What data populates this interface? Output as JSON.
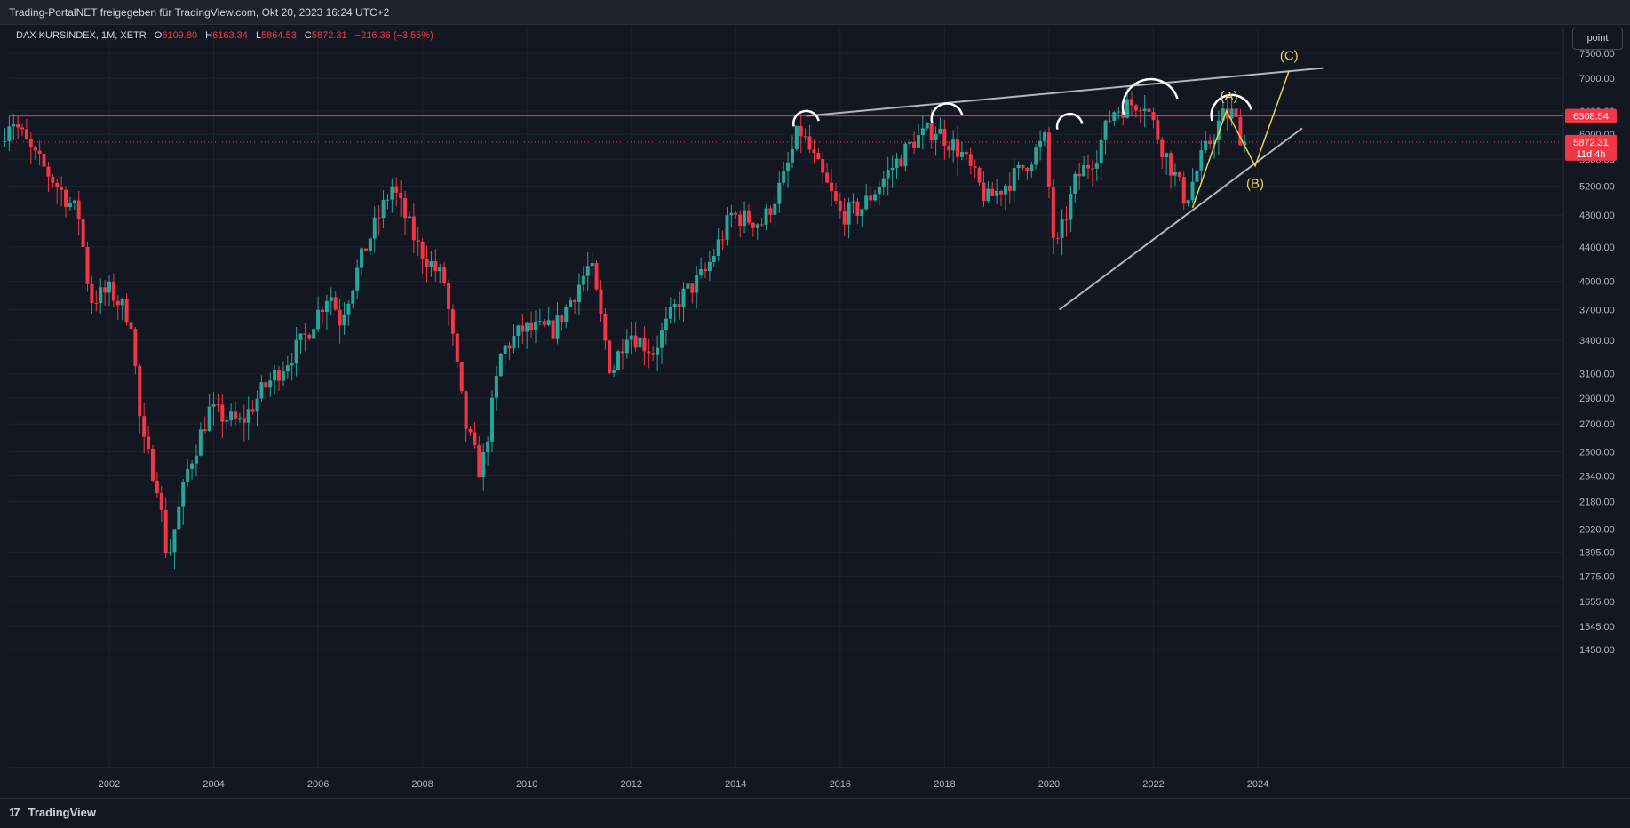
{
  "header": {
    "attribution": "Trading-PortalNET freigegeben für TradingView.com, Okt 20, 2023 16:24 UTC+2"
  },
  "legend": {
    "symbol": "DAX KURSINDEX, 1M, XETR",
    "o_label": "O",
    "o_value": "6109.80",
    "h_label": "H",
    "h_value": "6163.34",
    "l_label": "L",
    "l_value": "5864.53",
    "c_label": "C",
    "c_value": "5872.31",
    "change": "−216.36 (−3.55%)"
  },
  "toolbar": {
    "unit_button": "point"
  },
  "price_badges": {
    "resistance": "6308.54",
    "last": "5872.31",
    "countdown": "11d 4h"
  },
  "annotations": {
    "A": "(A)",
    "B": "(B)",
    "C": "(C)"
  },
  "footer": {
    "logo_mark": "17",
    "logo_text": "TradingView"
  },
  "colors": {
    "up": "#26a69a",
    "down": "#f23645",
    "background": "#131722",
    "wave": "#e8d44d",
    "trendline": "#b2b5be"
  },
  "chart_data": {
    "type": "candlestick",
    "symbol": "DAX KURSINDEX",
    "interval": "1M",
    "scale": "log",
    "y_ticks": [
      7500,
      7000,
      6400,
      6000,
      5600,
      5200,
      4800,
      4400,
      4000,
      3700,
      3400,
      3100,
      2900,
      2700,
      2500,
      2340,
      2180,
      2020,
      1895,
      1775,
      1655,
      1545,
      1450
    ],
    "y_tick_labels": [
      "7500.00",
      "7000.00",
      "6400.00",
      "6000.00",
      "5600.00",
      "5200.00",
      "4800.00",
      "4400.00",
      "4000.00",
      "3700.00",
      "3400.00",
      "3100.00",
      "2900.00",
      "2700.00",
      "2500.00",
      "2340.00",
      "2180.00",
      "2020.00",
      "1895.00",
      "1775.00",
      "1655.00",
      "1545.00",
      "1450.00"
    ],
    "x_tick_labels": [
      "2002",
      "2004",
      "2006",
      "2008",
      "2010",
      "2012",
      "2014",
      "2016",
      "2018",
      "2020",
      "2022",
      "2024"
    ],
    "x_ticks_year": [
      2002,
      2004,
      2006,
      2008,
      2010,
      2012,
      2014,
      2016,
      2018,
      2020,
      2022,
      2024
    ],
    "horizontal_line": 6308.54,
    "last_close": 5872.31,
    "anchors": [
      {
        "t": 2000.05,
        "p": 6000
      },
      {
        "t": 2000.2,
        "p": 6308
      },
      {
        "t": 2000.6,
        "p": 5700
      },
      {
        "t": 2001.0,
        "p": 5300
      },
      {
        "t": 2001.5,
        "p": 4800
      },
      {
        "t": 2001.72,
        "p": 3800
      },
      {
        "t": 2002.1,
        "p": 3900
      },
      {
        "t": 2002.5,
        "p": 3600
      },
      {
        "t": 2002.7,
        "p": 2600
      },
      {
        "t": 2003.0,
        "p": 2300
      },
      {
        "t": 2003.2,
        "p": 1850
      },
      {
        "t": 2003.6,
        "p": 2400
      },
      {
        "t": 2004.0,
        "p": 2800
      },
      {
        "t": 2004.6,
        "p": 2700
      },
      {
        "t": 2005.0,
        "p": 2950
      },
      {
        "t": 2005.8,
        "p": 3400
      },
      {
        "t": 2006.3,
        "p": 3900
      },
      {
        "t": 2006.5,
        "p": 3600
      },
      {
        "t": 2007.0,
        "p": 4400
      },
      {
        "t": 2007.5,
        "p": 5200
      },
      {
        "t": 2008.0,
        "p": 4400
      },
      {
        "t": 2008.5,
        "p": 4000
      },
      {
        "t": 2008.9,
        "p": 2700
      },
      {
        "t": 2009.2,
        "p": 2350
      },
      {
        "t": 2009.6,
        "p": 3300
      },
      {
        "t": 2010.0,
        "p": 3500
      },
      {
        "t": 2010.6,
        "p": 3500
      },
      {
        "t": 2011.3,
        "p": 4200
      },
      {
        "t": 2011.7,
        "p": 3100
      },
      {
        "t": 2012.0,
        "p": 3500
      },
      {
        "t": 2012.5,
        "p": 3300
      },
      {
        "t": 2013.0,
        "p": 3800
      },
      {
        "t": 2013.5,
        "p": 4100
      },
      {
        "t": 2014.0,
        "p": 4800
      },
      {
        "t": 2014.6,
        "p": 4700
      },
      {
        "t": 2015.0,
        "p": 5300
      },
      {
        "t": 2015.3,
        "p": 6100
      },
      {
        "t": 2015.7,
        "p": 5400
      },
      {
        "t": 2016.1,
        "p": 4800
      },
      {
        "t": 2016.5,
        "p": 4900
      },
      {
        "t": 2017.0,
        "p": 5400
      },
      {
        "t": 2017.5,
        "p": 5900
      },
      {
        "t": 2017.9,
        "p": 6100
      },
      {
        "t": 2018.4,
        "p": 5700
      },
      {
        "t": 2018.9,
        "p": 5000
      },
      {
        "t": 2019.5,
        "p": 5400
      },
      {
        "t": 2020.0,
        "p": 5900
      },
      {
        "t": 2020.2,
        "p": 4300
      },
      {
        "t": 2020.6,
        "p": 5300
      },
      {
        "t": 2021.0,
        "p": 5700
      },
      {
        "t": 2021.3,
        "p": 6400
      },
      {
        "t": 2021.9,
        "p": 6600
      },
      {
        "t": 2022.2,
        "p": 5900
      },
      {
        "t": 2022.7,
        "p": 5000
      },
      {
        "t": 2023.0,
        "p": 5600
      },
      {
        "t": 2023.4,
        "p": 6300
      },
      {
        "t": 2023.6,
        "p": 6350
      },
      {
        "t": 2023.8,
        "p": 5880
      }
    ],
    "drawings": {
      "upper_trendline": [
        [
          2015.35,
          6310
        ],
        [
          2025.25,
          7200
        ]
      ],
      "lower_trendline": [
        [
          2020.2,
          3700
        ],
        [
          2024.85,
          6100
        ]
      ],
      "wave": [
        [
          2022.75,
          4900
        ],
        [
          2023.4,
          6400
        ],
        [
          2023.95,
          5500
        ],
        [
          2024.6,
          7150
        ]
      ]
    }
  }
}
